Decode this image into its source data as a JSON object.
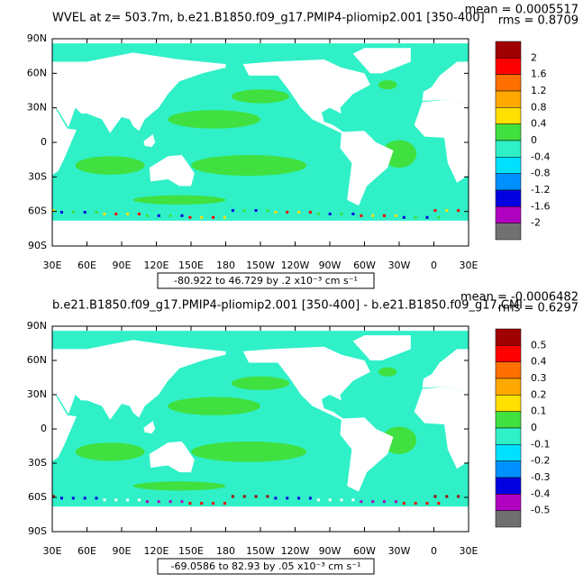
{
  "panels": [
    {
      "title": "WVEL at z= 503.7m, b.e21.B1850.f09_g17.PMIP4-pliomip2.001 [350-400]",
      "mean": "mean = 0.0005517",
      "rms": "rms = 0.8709",
      "info": "-80.922 to 46.729 by .2 x10⁻³ cm s⁻¹",
      "y_labels": [
        "90N",
        "60N",
        "30N",
        "0",
        "30S",
        "60S",
        "90S"
      ],
      "x_labels": [
        "30E",
        "60E",
        "90E",
        "120E",
        "150E",
        "180",
        "150W",
        "120W",
        "90W",
        "60W",
        "30W",
        "0",
        "30E"
      ],
      "colorbar": {
        "labels": [
          2,
          1.6,
          1.2,
          0.8,
          0.4,
          0,
          -0.4,
          -0.8,
          -1.2,
          -1.6,
          -2
        ],
        "colors": [
          "#a00000",
          "#ff0000",
          "#ff7000",
          "#ffa800",
          "#ffe000",
          "#40e040",
          "#30f0c8",
          "#00e0ff",
          "#0090ff",
          "#0000e0",
          "#b000c0",
          "#707070"
        ]
      }
    },
    {
      "title": "b.e21.B1850.f09_g17.PMIP4-pliomip2.001 [350-400] - b.e21.B1850.f09_g17.CMI",
      "mean": "mean = -0.0006482",
      "rms": "rms = 0.6297",
      "info": "-69.0586 to 82.93 by .05 x10⁻³ cm s⁻¹",
      "y_labels": [
        "90N",
        "60N",
        "30N",
        "0",
        "30S",
        "60S",
        "90S"
      ],
      "x_labels": [
        "30E",
        "60E",
        "90E",
        "120E",
        "150E",
        "180",
        "150W",
        "120W",
        "90W",
        "60W",
        "30W",
        "0",
        "30E"
      ],
      "colorbar": {
        "labels": [
          0.5,
          0.4,
          0.3,
          0.2,
          0.1,
          0,
          -0.1,
          -0.2,
          -0.3,
          -0.4,
          -0.5
        ],
        "colors": [
          "#a00000",
          "#ff0000",
          "#ff7000",
          "#ffa800",
          "#ffe000",
          "#40e040",
          "#30f0c8",
          "#00e0ff",
          "#0090ff",
          "#0000e0",
          "#b000c0",
          "#707070"
        ]
      }
    }
  ]
}
